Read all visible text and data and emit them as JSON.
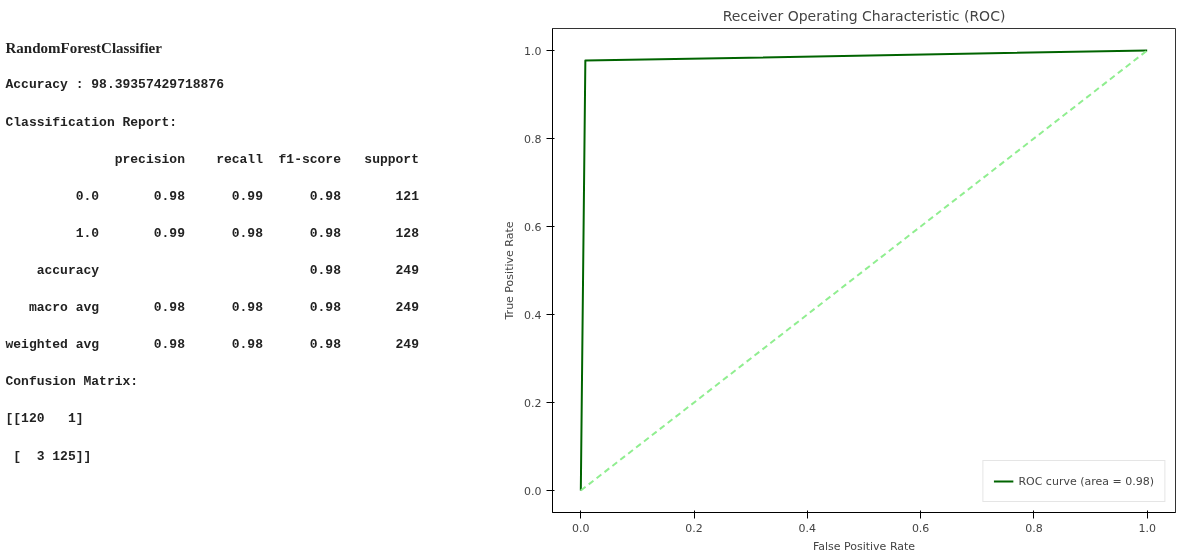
{
  "chart_data": [
    {
      "type": "other",
      "title": "RandomForestClassifier",
      "annotations": [
        "Accuracy : 98.39357429718876",
        "Classification Report:",
        "              precision    recall  f1-score   support",
        "         0.0       0.98      0.99      0.98       121",
        "         1.0       0.99      0.98      0.98       128",
        "    accuracy                           0.98       249",
        "   macro avg       0.98      0.98      0.98       249",
        "weighted avg       0.98      0.98      0.98       249",
        "Confusion Matrix:",
        "[[120   1]",
        " [  3 125]]"
      ]
    },
    {
      "type": "line",
      "title": "Receiver Operating Characteristic (ROC)",
      "xlabel": "False Positive Rate",
      "ylabel": "True Positive Rate",
      "xlim": [
        -0.05,
        1.05
      ],
      "ylim": [
        -0.05,
        1.05
      ],
      "xticks": [
        {
          "value": 0,
          "label": "0.0"
        },
        0.2,
        0.4,
        0.6,
        0.8,
        {
          "value": 1,
          "label": "1.0"
        }
      ],
      "yticks": [
        {
          "value": 0,
          "label": "0.0"
        },
        0.2,
        0.4,
        0.6,
        0.8,
        {
          "value": 1,
          "label": "1.0"
        }
      ],
      "grid": false,
      "legend": "bottom right",
      "series": [
        {
          "name": "ROC curve (area = 0.98)",
          "color": "#006400",
          "x": [
            0,
            0.008,
            1
          ],
          "values": [
            0,
            0.977,
            1
          ],
          "line_style": "solid"
        },
        {
          "color": "#90ee90",
          "x": [
            0,
            1
          ],
          "values": [
            0,
            1
          ],
          "line_style": "dashed"
        }
      ]
    }
  ]
}
